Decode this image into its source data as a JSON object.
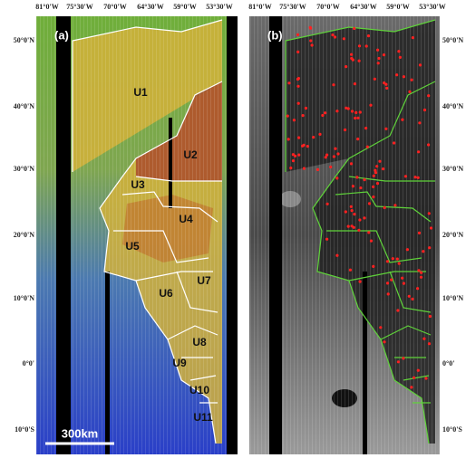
{
  "panels": [
    {
      "label": "(a)",
      "units": [
        "U1",
        "U2",
        "U3",
        "U4",
        "U5",
        "U6",
        "U7",
        "U8",
        "U9",
        "U10",
        "U11"
      ],
      "scale_bar": "300km"
    },
    {
      "label": "(b)"
    }
  ],
  "longitudes": [
    "81°0'W",
    "75°30'W",
    "70°0'W",
    "64°30'W",
    "59°0'W",
    "53°30'W"
  ],
  "latitudes": [
    "50°0'N",
    "40°0'N",
    "30°0'N",
    "20°0'N",
    "10°0'N",
    "0°0'",
    "10°0'S"
  ]
}
